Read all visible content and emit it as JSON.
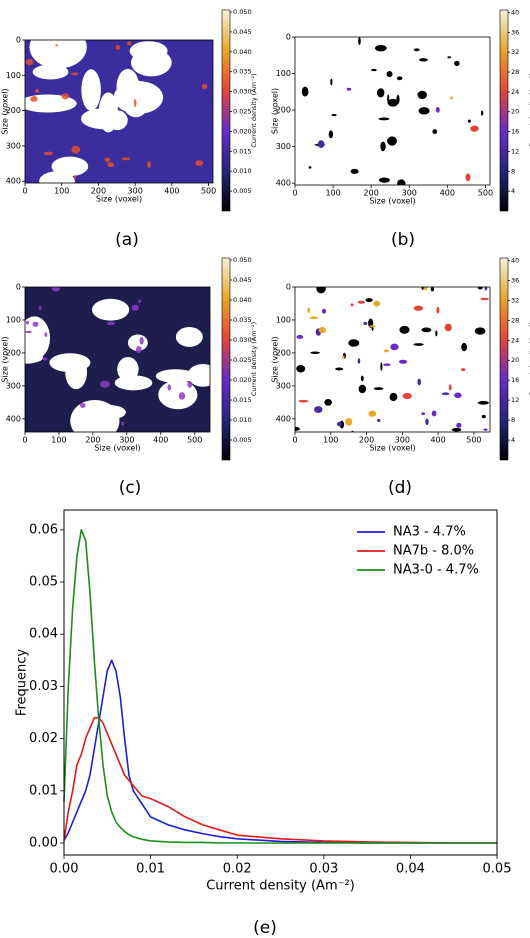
{
  "chart_data": [
    {
      "type": "heatmap",
      "label": "(a)",
      "xlabel": "Size (voxel)",
      "ylabel": "Size (voxel)",
      "colorbar_label": "Current density (Am⁻²)",
      "xlim": [
        0,
        512
      ],
      "ylim": [
        405,
        0
      ],
      "xticks": [
        0,
        100,
        200,
        300,
        400,
        500
      ],
      "yticks": [
        0,
        100,
        200,
        300,
        400
      ],
      "clim": [
        0,
        0.0505
      ],
      "cticks": [
        0.005,
        {
          "value": 0.01,
          "label": "0.010"
        },
        0.015,
        {
          "value": 0.02,
          "label": "0.020"
        },
        0.025,
        {
          "value": 0.03,
          "label": "0.030"
        },
        0.035,
        {
          "value": 0.04,
          "label": "0.040"
        },
        0.045,
        {
          "value": 0.05,
          "label": "0.050"
        }
      ]
    },
    {
      "type": "heatmap",
      "label": "(b)",
      "xlabel": "Size (voxel)",
      "ylabel": "Size (voxel)",
      "colorbar_label": "Current density (Am⁻²)",
      "xlim": [
        0,
        512
      ],
      "ylim": [
        405,
        0
      ],
      "xticks": [
        0,
        100,
        200,
        300,
        400,
        500
      ],
      "yticks": [
        0,
        100,
        200,
        300,
        400
      ],
      "clim": [
        0,
        40.5
      ],
      "cticks": [
        4,
        8,
        12,
        16,
        20,
        24,
        28,
        32,
        36,
        40
      ]
    },
    {
      "type": "heatmap",
      "label": "(c)",
      "xlabel": "Size (voxel)",
      "ylabel": "Size (voxel)",
      "colorbar_label": "Current density (Am⁻²)",
      "xlim": [
        0,
        545
      ],
      "ylim": [
        440,
        0
      ],
      "xticks": [
        0,
        100,
        200,
        300,
        400,
        500
      ],
      "yticks": [
        0,
        100,
        200,
        300,
        400
      ],
      "clim": [
        0,
        0.0505
      ],
      "cticks": [
        0.005,
        {
          "value": 0.01,
          "label": "0.010"
        },
        0.015,
        {
          "value": 0.02,
          "label": "0.020"
        },
        0.025,
        {
          "value": 0.03,
          "label": "0.030"
        },
        0.035,
        {
          "value": 0.04,
          "label": "0.040"
        },
        0.045,
        {
          "value": 0.05,
          "label": "0.050"
        }
      ]
    },
    {
      "type": "heatmap",
      "label": "(d)",
      "xlabel": "Size (voxel)",
      "ylabel": "Size (voxel)",
      "colorbar_label": "Current density (Am⁻²)",
      "xlim": [
        0,
        545
      ],
      "ylim": [
        440,
        0
      ],
      "xticks": [
        0,
        100,
        200,
        300,
        400,
        500
      ],
      "yticks": [
        0,
        100,
        200,
        300,
        400
      ],
      "clim": [
        0,
        40.5
      ],
      "cticks": [
        4,
        8,
        12,
        16,
        20,
        24,
        28,
        32,
        36,
        40
      ]
    },
    {
      "type": "line",
      "label": "(e)",
      "xlabel": "Current density (Am⁻²)",
      "ylabel": "Frequency",
      "legend": "upper right",
      "xlim": [
        0,
        0.05
      ],
      "ylim": [
        -0.0023,
        0.0638
      ],
      "xticks": [
        {
          "value": 0,
          "label": "0.00"
        },
        0.01,
        0.02,
        0.03,
        0.04,
        0.05
      ],
      "yticks": [
        {
          "value": 0,
          "label": "0.00"
        },
        0.01,
        0.02,
        0.03,
        0.04,
        0.05,
        0.06
      ],
      "x": [
        0,
        0.0005,
        0.001,
        0.0015,
        0.002,
        0.0025,
        0.003,
        0.0035,
        0.004,
        0.0045,
        0.005,
        0.0055,
        0.006,
        0.0065,
        0.007,
        0.0075,
        0.008,
        0.009,
        0.01,
        0.012,
        0.014,
        0.016,
        0.018,
        0.02,
        0.025,
        0.03,
        0.035,
        0.04,
        0.045,
        0.05
      ],
      "series": [
        {
          "name": "NA3 - 4.7%",
          "color": "#1f1fd6",
          "values": [
            0.0005,
            0.002,
            0.004,
            0.006,
            0.008,
            0.01,
            0.013,
            0.018,
            0.023,
            0.028,
            0.033,
            0.035,
            0.033,
            0.028,
            0.02,
            0.013,
            0.01,
            0.0075,
            0.005,
            0.0035,
            0.0025,
            0.0018,
            0.0012,
            0.0008,
            0.0003,
            0.0001,
            0,
            0,
            0,
            0
          ]
        },
        {
          "name": "NA7b - 8.0%",
          "color": "#e41a1a",
          "values": [
            0.0005,
            0.006,
            0.01,
            0.015,
            0.017,
            0.02,
            0.022,
            0.024,
            0.024,
            0.023,
            0.021,
            0.019,
            0.017,
            0.015,
            0.013,
            0.012,
            0.011,
            0.009,
            0.0085,
            0.007,
            0.005,
            0.0035,
            0.0025,
            0.0015,
            0.0008,
            0.0004,
            0.0002,
            0.0001,
            0,
            0
          ]
        },
        {
          "name": "NA3-0 - 4.7%",
          "color": "#1a8f1a",
          "values": [
            0.008,
            0.03,
            0.045,
            0.055,
            0.06,
            0.058,
            0.048,
            0.035,
            0.024,
            0.015,
            0.009,
            0.006,
            0.004,
            0.003,
            0.0022,
            0.0016,
            0.0012,
            0.0007,
            0.0004,
            0.0002,
            0.0001,
            0.0001,
            0,
            0,
            0,
            0,
            0,
            0,
            0,
            0
          ]
        }
      ]
    }
  ]
}
